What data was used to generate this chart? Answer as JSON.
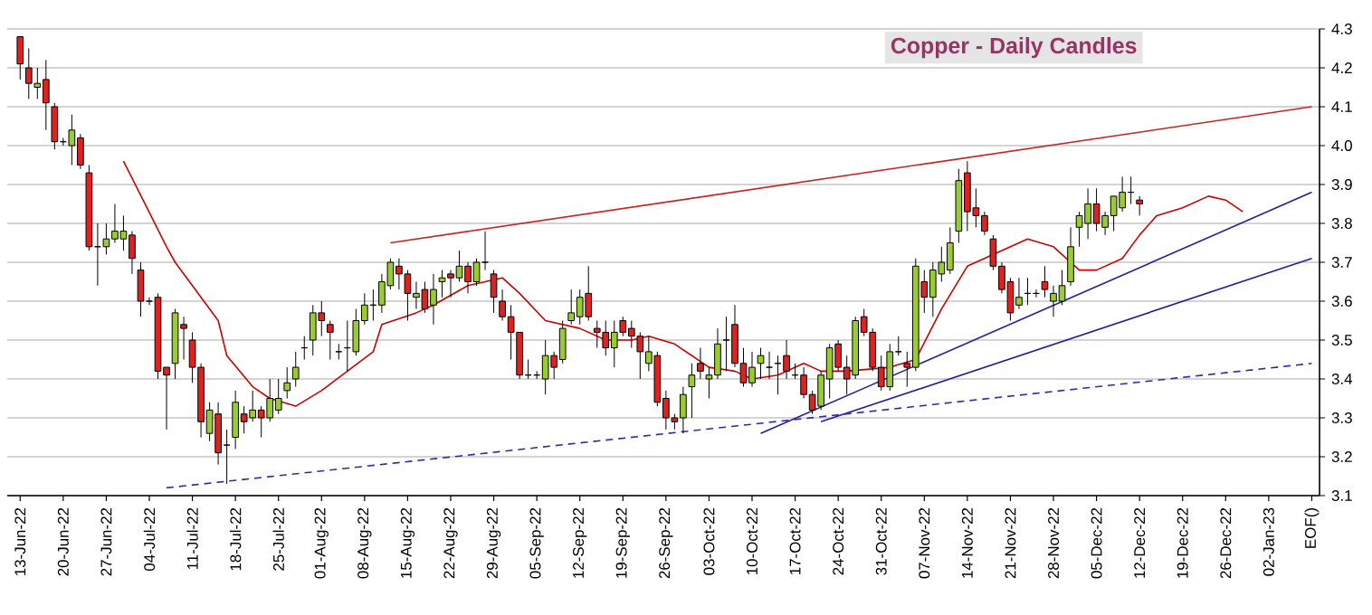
{
  "chart_data": {
    "type": "candlestick",
    "title": "Copper - Daily Candles",
    "categories": [
      "13-Jun-22",
      null,
      null,
      null,
      null,
      "20-Jun-22",
      null,
      null,
      null,
      null,
      "27-Jun-22",
      null,
      null,
      null,
      null,
      "04-Jul-22",
      null,
      null,
      null,
      null,
      "11-Jul-22",
      null,
      null,
      null,
      null,
      "18-Jul-22",
      null,
      null,
      null,
      null,
      "25-Jul-22",
      null,
      null,
      null,
      null,
      "01-Aug-22",
      null,
      null,
      null,
      null,
      "08-Aug-22",
      null,
      null,
      null,
      null,
      "15-Aug-22",
      null,
      null,
      null,
      null,
      "22-Aug-22",
      null,
      null,
      null,
      null,
      "29-Aug-22",
      null,
      null,
      null,
      null,
      "05-Sep-22",
      null,
      null,
      null,
      null,
      "12-Sep-22",
      null,
      null,
      null,
      null,
      "19-Sep-22",
      null,
      null,
      null,
      null,
      "26-Sep-22",
      null,
      null,
      null,
      null,
      "03-Oct-22",
      null,
      null,
      null,
      null,
      "10-Oct-22",
      null,
      null,
      null,
      null,
      "17-Oct-22",
      null,
      null,
      null,
      null,
      "24-Oct-22",
      null,
      null,
      null,
      null,
      "31-Oct-22",
      null,
      null,
      null,
      null,
      "07-Nov-22",
      null,
      null,
      null,
      null,
      "14-Nov-22",
      null,
      null,
      null,
      null,
      "21-Nov-22",
      null,
      null,
      null,
      null,
      "28-Nov-22",
      null,
      null,
      null,
      null,
      "05-Dec-22",
      null,
      null,
      null,
      null,
      "12-Dec-22",
      null,
      null,
      null,
      null,
      "19-Dec-22",
      null,
      null,
      null,
      null,
      "26-Dec-22",
      null,
      null,
      null,
      null,
      "02-Jan-23",
      null,
      null,
      null,
      null,
      "EOF()"
    ],
    "ohlc": [
      [
        4.28,
        4.28,
        4.17,
        4.21
      ],
      [
        4.2,
        4.25,
        4.12,
        4.16
      ],
      [
        4.15,
        4.2,
        4.12,
        4.16
      ],
      [
        4.17,
        4.22,
        4.04,
        4.11
      ],
      [
        4.1,
        4.11,
        3.99,
        4.01
      ],
      [
        4.01,
        4.02,
        4.0,
        4.01
      ],
      [
        4.0,
        4.08,
        3.95,
        4.04
      ],
      [
        4.02,
        4.03,
        3.94,
        3.95
      ],
      [
        3.93,
        3.95,
        3.73,
        3.74
      ],
      [
        3.74,
        3.8,
        3.64,
        3.74
      ],
      [
        3.74,
        3.8,
        3.72,
        3.76
      ],
      [
        3.76,
        3.85,
        3.75,
        3.78
      ],
      [
        3.76,
        3.82,
        3.73,
        3.78
      ],
      [
        3.77,
        3.78,
        3.67,
        3.71
      ],
      [
        3.68,
        3.7,
        3.56,
        3.6
      ],
      [
        3.6,
        3.61,
        3.59,
        3.6
      ],
      [
        3.61,
        3.62,
        3.4,
        3.42
      ],
      [
        3.43,
        3.43,
        3.27,
        3.41
      ],
      [
        3.44,
        3.58,
        3.4,
        3.57
      ],
      [
        3.54,
        3.56,
        3.45,
        3.53
      ],
      [
        3.5,
        3.52,
        3.39,
        3.43
      ],
      [
        3.43,
        3.44,
        3.25,
        3.29
      ],
      [
        3.26,
        3.34,
        3.24,
        3.32
      ],
      [
        3.31,
        3.34,
        3.18,
        3.21
      ],
      [
        3.23,
        3.27,
        3.13,
        3.23
      ],
      [
        3.25,
        3.37,
        3.22,
        3.34
      ],
      [
        3.31,
        3.33,
        3.26,
        3.29
      ],
      [
        3.3,
        3.37,
        3.29,
        3.32
      ],
      [
        3.32,
        3.33,
        3.25,
        3.3
      ],
      [
        3.3,
        3.4,
        3.29,
        3.35
      ],
      [
        3.32,
        3.4,
        3.31,
        3.35
      ],
      [
        3.37,
        3.43,
        3.35,
        3.39
      ],
      [
        3.4,
        3.47,
        3.38,
        3.43
      ],
      [
        3.48,
        3.51,
        3.45,
        3.48
      ],
      [
        3.5,
        3.59,
        3.46,
        3.57
      ],
      [
        3.57,
        3.6,
        3.51,
        3.55
      ],
      [
        3.54,
        3.55,
        3.45,
        3.52
      ],
      [
        3.47,
        3.49,
        3.45,
        3.47
      ],
      [
        3.48,
        3.55,
        3.42,
        3.48
      ],
      [
        3.47,
        3.58,
        3.46,
        3.55
      ],
      [
        3.55,
        3.62,
        3.54,
        3.59
      ],
      [
        3.59,
        3.63,
        3.55,
        3.59
      ],
      [
        3.59,
        3.67,
        3.57,
        3.65
      ],
      [
        3.64,
        3.71,
        3.63,
        3.7
      ],
      [
        3.69,
        3.71,
        3.63,
        3.67
      ],
      [
        3.67,
        3.68,
        3.55,
        3.62
      ],
      [
        3.61,
        3.65,
        3.58,
        3.62
      ],
      [
        3.63,
        3.65,
        3.57,
        3.58
      ],
      [
        3.59,
        3.67,
        3.54,
        3.63
      ],
      [
        3.65,
        3.68,
        3.61,
        3.66
      ],
      [
        3.67,
        3.68,
        3.61,
        3.66
      ],
      [
        3.66,
        3.73,
        3.65,
        3.69
      ],
      [
        3.69,
        3.7,
        3.62,
        3.65
      ],
      [
        3.65,
        3.71,
        3.64,
        3.7
      ],
      [
        3.7,
        3.78,
        3.68,
        3.7
      ],
      [
        3.67,
        3.68,
        3.57,
        3.61
      ],
      [
        3.6,
        3.63,
        3.55,
        3.56
      ],
      [
        3.56,
        3.59,
        3.45,
        3.52
      ],
      [
        3.52,
        3.52,
        3.4,
        3.41
      ],
      [
        3.41,
        3.45,
        3.4,
        3.41
      ],
      [
        3.41,
        3.42,
        3.4,
        3.41
      ],
      [
        3.4,
        3.5,
        3.36,
        3.46
      ],
      [
        3.46,
        3.47,
        3.4,
        3.43
      ],
      [
        3.45,
        3.55,
        3.44,
        3.53
      ],
      [
        3.55,
        3.63,
        3.54,
        3.57
      ],
      [
        3.56,
        3.63,
        3.54,
        3.61
      ],
      [
        3.62,
        3.69,
        3.55,
        3.56
      ],
      [
        3.53,
        3.55,
        3.48,
        3.52
      ],
      [
        3.52,
        3.55,
        3.46,
        3.48
      ],
      [
        3.48,
        3.55,
        3.43,
        3.52
      ],
      [
        3.55,
        3.56,
        3.51,
        3.52
      ],
      [
        3.53,
        3.55,
        3.48,
        3.51
      ],
      [
        3.51,
        3.52,
        3.4,
        3.47
      ],
      [
        3.44,
        3.51,
        3.42,
        3.47
      ],
      [
        3.46,
        3.47,
        3.33,
        3.34
      ],
      [
        3.35,
        3.37,
        3.27,
        3.3
      ],
      [
        3.3,
        3.31,
        3.27,
        3.29
      ],
      [
        3.3,
        3.38,
        3.26,
        3.36
      ],
      [
        3.38,
        3.44,
        3.3,
        3.41
      ],
      [
        3.44,
        3.48,
        3.4,
        3.42
      ],
      [
        3.4,
        3.43,
        3.35,
        3.41
      ],
      [
        3.41,
        3.53,
        3.4,
        3.49
      ],
      [
        3.5,
        3.56,
        3.42,
        3.5
      ],
      [
        3.54,
        3.59,
        3.43,
        3.44
      ],
      [
        3.44,
        3.48,
        3.38,
        3.39
      ],
      [
        3.39,
        3.47,
        3.38,
        3.43
      ],
      [
        3.44,
        3.48,
        3.4,
        3.46
      ],
      [
        3.43,
        3.47,
        3.4,
        3.43
      ],
      [
        3.44,
        3.46,
        3.36,
        3.44
      ],
      [
        3.46,
        3.5,
        3.4,
        3.42
      ],
      [
        3.41,
        3.44,
        3.4,
        3.41
      ],
      [
        3.41,
        3.43,
        3.35,
        3.36
      ],
      [
        3.36,
        3.37,
        3.31,
        3.32
      ],
      [
        3.33,
        3.42,
        3.32,
        3.41
      ],
      [
        3.4,
        3.49,
        3.35,
        3.48
      ],
      [
        3.49,
        3.5,
        3.42,
        3.43
      ],
      [
        3.43,
        3.46,
        3.36,
        3.4
      ],
      [
        3.41,
        3.56,
        3.4,
        3.55
      ],
      [
        3.56,
        3.58,
        3.51,
        3.52
      ],
      [
        3.52,
        3.53,
        3.42,
        3.43
      ],
      [
        3.43,
        3.46,
        3.37,
        3.38
      ],
      [
        3.38,
        3.49,
        3.37,
        3.47
      ],
      [
        3.47,
        3.51,
        3.46,
        3.47
      ],
      [
        3.44,
        3.47,
        3.38,
        3.43
      ],
      [
        3.43,
        3.71,
        3.42,
        3.69
      ],
      [
        3.65,
        3.68,
        3.57,
        3.61
      ],
      [
        3.61,
        3.7,
        3.56,
        3.68
      ],
      [
        3.67,
        3.74,
        3.65,
        3.7
      ],
      [
        3.68,
        3.79,
        3.67,
        3.75
      ],
      [
        3.78,
        3.94,
        3.75,
        3.91
      ],
      [
        3.93,
        3.96,
        3.78,
        3.83
      ],
      [
        3.84,
        3.89,
        3.79,
        3.82
      ],
      [
        3.82,
        3.83,
        3.77,
        3.78
      ],
      [
        3.76,
        3.77,
        3.68,
        3.69
      ],
      [
        3.69,
        3.7,
        3.62,
        3.63
      ],
      [
        3.65,
        3.66,
        3.55,
        3.57
      ],
      [
        3.59,
        3.66,
        3.58,
        3.61
      ],
      [
        3.62,
        3.66,
        3.59,
        3.62
      ],
      [
        3.62,
        3.63,
        3.61,
        3.62
      ],
      [
        3.65,
        3.69,
        3.61,
        3.63
      ],
      [
        3.6,
        3.64,
        3.56,
        3.62
      ],
      [
        3.6,
        3.68,
        3.59,
        3.64
      ],
      [
        3.65,
        3.79,
        3.64,
        3.74
      ],
      [
        3.79,
        3.83,
        3.74,
        3.82
      ],
      [
        3.8,
        3.89,
        3.76,
        3.85
      ],
      [
        3.85,
        3.89,
        3.78,
        3.8
      ],
      [
        3.79,
        3.83,
        3.77,
        3.82
      ],
      [
        3.82,
        3.87,
        3.78,
        3.87
      ],
      [
        3.84,
        3.92,
        3.83,
        3.88
      ],
      [
        3.88,
        3.92,
        3.85,
        3.88
      ],
      [
        3.86,
        3.87,
        3.82,
        3.85
      ],
      null,
      null,
      null,
      null,
      null,
      null,
      null,
      null,
      null,
      null,
      null,
      null,
      null,
      null,
      null,
      null,
      null,
      null,
      null,
      null
    ],
    "colors": [
      "#dd2222",
      "#dd2222",
      "#99cc33",
      "#dd2222",
      "#dd2222",
      "#000000",
      "#99cc33",
      "#dd2222",
      "#dd2222",
      "#000000",
      "#99cc33",
      "#99cc33",
      "#99cc33",
      "#dd2222",
      "#dd2222",
      "#000000",
      "#dd2222",
      "#dd2222",
      "#99cc33",
      "#dd2222",
      "#dd2222",
      "#dd2222",
      "#99cc33",
      "#dd2222",
      "#000000",
      "#99cc33",
      "#dd2222",
      "#99cc33",
      "#dd2222",
      "#99cc33",
      "#99cc33",
      "#99cc33",
      "#99cc33",
      "#000000",
      "#99cc33",
      "#dd2222",
      "#dd2222",
      "#000000",
      "#000000",
      "#99cc33",
      "#99cc33",
      "#000000",
      "#99cc33",
      "#99cc33",
      "#dd2222",
      "#dd2222",
      "#99cc33",
      "#dd2222",
      "#99cc33",
      "#99cc33",
      "#dd2222",
      "#99cc33",
      "#dd2222",
      "#99cc33",
      "#000000",
      "#dd2222",
      "#dd2222",
      "#dd2222",
      "#dd2222",
      "#000000",
      "#000000",
      "#99cc33",
      "#dd2222",
      "#99cc33",
      "#99cc33",
      "#99cc33",
      "#dd2222",
      "#dd2222",
      "#dd2222",
      "#99cc33",
      "#dd2222",
      "#dd2222",
      "#dd2222",
      "#99cc33",
      "#dd2222",
      "#dd2222",
      "#dd2222",
      "#99cc33",
      "#99cc33",
      "#dd2222",
      "#99cc33",
      "#99cc33",
      "#000000",
      "#dd2222",
      "#dd2222",
      "#99cc33",
      "#99cc33",
      "#000000",
      "#000000",
      "#dd2222",
      "#000000",
      "#dd2222",
      "#dd2222",
      "#99cc33",
      "#99cc33",
      "#dd2222",
      "#dd2222",
      "#99cc33",
      "#dd2222",
      "#dd2222",
      "#dd2222",
      "#99cc33",
      "#000000",
      "#dd2222",
      "#99cc33",
      "#dd2222",
      "#99cc33",
      "#99cc33",
      "#99cc33",
      "#99cc33",
      "#dd2222",
      "#dd2222",
      "#dd2222",
      "#dd2222",
      "#dd2222",
      "#dd2222",
      "#99cc33",
      "#000000",
      "#000000",
      "#dd2222",
      "#99cc33",
      "#99cc33",
      "#99cc33",
      "#99cc33",
      "#99cc33",
      "#dd2222",
      "#99cc33",
      "#99cc33",
      "#99cc33",
      "#000000",
      "#dd2222",
      null,
      null,
      null,
      null,
      null,
      null,
      null,
      null,
      null,
      null,
      null,
      null,
      null,
      null,
      null,
      null,
      null,
      null,
      null,
      null
    ],
    "series": [
      {
        "type": "line",
        "color": "#cc0000",
        "values": [
          null,
          null,
          null,
          null,
          null,
          null,
          null,
          null,
          null,
          null,
          null,
          null,
          3.96,
          null,
          null,
          null,
          null,
          3.74,
          3.7,
          null,
          null,
          null,
          null,
          3.55,
          3.46,
          null,
          null,
          3.38,
          null,
          3.35,
          null,
          null,
          3.33,
          null,
          null,
          3.37,
          null,
          null,
          3.42,
          null,
          null,
          3.47,
          3.54,
          null,
          null,
          null,
          3.57,
          null,
          3.59,
          null,
          null,
          null,
          3.64,
          null,
          null,
          null,
          3.66,
          null,
          3.62,
          null,
          null,
          3.55,
          null,
          null,
          null,
          3.53,
          null,
          null,
          3.5,
          null,
          null,
          3.5,
          null,
          3.51,
          null,
          null,
          3.49,
          null,
          null,
          null,
          3.43,
          null,
          null,
          3.42,
          null,
          3.4,
          null,
          null,
          3.41,
          null,
          null,
          3.44,
          null,
          3.42,
          null,
          null,
          3.42,
          null,
          null,
          null,
          null,
          3.43,
          null,
          null,
          3.45,
          null,
          null,
          3.58,
          null,
          null,
          3.69,
          null,
          null,
          3.72,
          null,
          null,
          3.75,
          3.76,
          null,
          null,
          3.74,
          null,
          null,
          3.68,
          null,
          3.68,
          null,
          null,
          3.71,
          null,
          3.77,
          null,
          3.82,
          null,
          null,
          3.84,
          null,
          null,
          3.87,
          null,
          3.86,
          null,
          3.83,
          null,
          null,
          null,
          null,
          null,
          null,
          null,
          null
        ]
      },
      {
        "type": "line",
        "color": "#cc2222",
        "values": [
          null,
          null,
          null,
          null,
          null,
          null,
          null,
          null,
          null,
          null,
          null,
          null,
          null,
          null,
          null,
          null,
          null,
          null,
          null,
          null,
          null,
          null,
          null,
          null,
          null,
          null,
          null,
          null,
          null,
          null,
          null,
          null,
          null,
          null,
          null,
          null,
          null,
          null,
          null,
          null,
          null,
          null,
          null,
          3.75,
          null,
          null,
          null,
          null,
          null,
          null,
          null,
          null,
          null,
          null,
          null,
          null,
          null,
          null,
          null,
          null,
          null,
          null,
          null,
          null,
          null,
          null,
          null,
          null,
          null,
          null,
          null,
          null,
          null,
          null,
          null,
          null,
          null,
          null,
          null,
          null,
          null,
          null,
          null,
          null,
          null,
          null,
          null,
          null,
          null,
          null,
          null,
          null,
          null,
          null,
          null,
          null,
          null,
          null,
          null,
          null,
          null,
          null,
          null,
          null,
          null,
          null,
          null,
          null,
          null,
          null,
          null,
          null,
          null,
          null,
          null,
          null,
          null,
          null,
          null,
          null,
          null,
          null,
          null,
          null,
          null,
          null,
          null,
          null,
          null,
          null,
          null,
          null,
          null,
          null,
          null,
          null,
          null,
          null,
          null,
          null,
          null,
          null,
          null,
          null,
          null,
          null,
          null,
          null,
          null,
          null,
          4.1
        ]
      },
      {
        "type": "line",
        "color": "#1f1f9f",
        "values": [
          null,
          null,
          null,
          null,
          null,
          null,
          null,
          null,
          null,
          null,
          null,
          null,
          null,
          null,
          null,
          null,
          null,
          null,
          null,
          null,
          null,
          null,
          null,
          null,
          null,
          null,
          null,
          null,
          null,
          null,
          null,
          null,
          null,
          null,
          null,
          null,
          null,
          null,
          null,
          null,
          null,
          null,
          null,
          null,
          null,
          null,
          null,
          null,
          null,
          null,
          null,
          null,
          null,
          null,
          null,
          null,
          null,
          null,
          null,
          null,
          null,
          null,
          null,
          null,
          null,
          null,
          null,
          null,
          null,
          null,
          null,
          null,
          null,
          null,
          null,
          null,
          null,
          null,
          null,
          null,
          null,
          null,
          null,
          null,
          null,
          null,
          3.26,
          null,
          null,
          null,
          null,
          null,
          null,
          null,
          null,
          null,
          null,
          null,
          null,
          null,
          null,
          null,
          null,
          null,
          null,
          null,
          null,
          null,
          null,
          null,
          null,
          null,
          null,
          null,
          null,
          null,
          null,
          null,
          null,
          null,
          null,
          null,
          null,
          null,
          null,
          null,
          null,
          null,
          null,
          null,
          null,
          null,
          null,
          null,
          null,
          null,
          null,
          null,
          null,
          null,
          null,
          null,
          null,
          null,
          null,
          null,
          null,
          null,
          null,
          null,
          3.88
        ]
      },
      {
        "type": "line",
        "color": "#1f1f9f",
        "values": [
          null,
          null,
          null,
          null,
          null,
          null,
          null,
          null,
          null,
          null,
          null,
          null,
          null,
          null,
          null,
          null,
          null,
          null,
          null,
          null,
          null,
          null,
          null,
          null,
          null,
          null,
          null,
          null,
          null,
          null,
          null,
          null,
          null,
          null,
          null,
          null,
          null,
          null,
          null,
          null,
          null,
          null,
          null,
          null,
          null,
          null,
          null,
          null,
          null,
          null,
          null,
          null,
          null,
          null,
          null,
          null,
          null,
          null,
          null,
          null,
          null,
          null,
          null,
          null,
          null,
          null,
          null,
          null,
          null,
          null,
          null,
          null,
          null,
          null,
          null,
          null,
          null,
          null,
          null,
          null,
          null,
          null,
          null,
          null,
          null,
          null,
          null,
          null,
          null,
          null,
          null,
          null,
          null,
          3.29,
          null,
          null,
          null,
          null,
          null,
          null,
          null,
          null,
          null,
          null,
          null,
          null,
          null,
          null,
          null,
          null,
          null,
          null,
          null,
          null,
          null,
          null,
          null,
          null,
          null,
          null,
          null,
          null,
          null,
          null,
          null,
          null,
          null,
          null,
          null,
          null,
          null,
          null,
          null,
          null,
          null,
          null,
          null,
          null,
          null,
          null,
          null,
          null,
          null,
          null,
          null,
          null,
          null,
          null,
          null,
          null,
          3.71
        ]
      },
      {
        "type": "line",
        "color": "#2b2bb0",
        "line_style": "dashed",
        "values": [
          null,
          null,
          null,
          null,
          null,
          null,
          null,
          null,
          null,
          null,
          null,
          null,
          null,
          null,
          null,
          null,
          null,
          3.12,
          null,
          null,
          null,
          null,
          null,
          null,
          null,
          null,
          null,
          null,
          null,
          null,
          null,
          null,
          null,
          null,
          null,
          null,
          null,
          null,
          null,
          null,
          null,
          null,
          null,
          null,
          null,
          null,
          null,
          null,
          null,
          null,
          null,
          null,
          null,
          null,
          null,
          null,
          null,
          null,
          null,
          null,
          null,
          null,
          null,
          null,
          null,
          null,
          null,
          null,
          null,
          null,
          null,
          null,
          null,
          null,
          null,
          null,
          null,
          null,
          null,
          null,
          null,
          null,
          null,
          null,
          null,
          null,
          null,
          null,
          null,
          null,
          null,
          null,
          null,
          null,
          null,
          null,
          null,
          null,
          null,
          null,
          null,
          null,
          null,
          null,
          null,
          null,
          null,
          null,
          null,
          null,
          null,
          null,
          null,
          null,
          null,
          null,
          null,
          null,
          null,
          null,
          null,
          null,
          null,
          null,
          null,
          null,
          null,
          null,
          null,
          null,
          null,
          null,
          null,
          null,
          null,
          null,
          null,
          null,
          null,
          null,
          null,
          null,
          null,
          null,
          null,
          null,
          null,
          null,
          null,
          null,
          3.44
        ]
      }
    ],
    "ylim": [
      3.1,
      4.3
    ],
    "yticks": [
      3.1,
      3.2,
      3.3,
      3.4,
      3.5,
      3.6,
      3.7,
      3.8,
      3.9,
      {
        "value": 4.0,
        "label": "4.0"
      },
      4.1,
      4.2,
      4.3
    ],
    "grid": "y"
  }
}
